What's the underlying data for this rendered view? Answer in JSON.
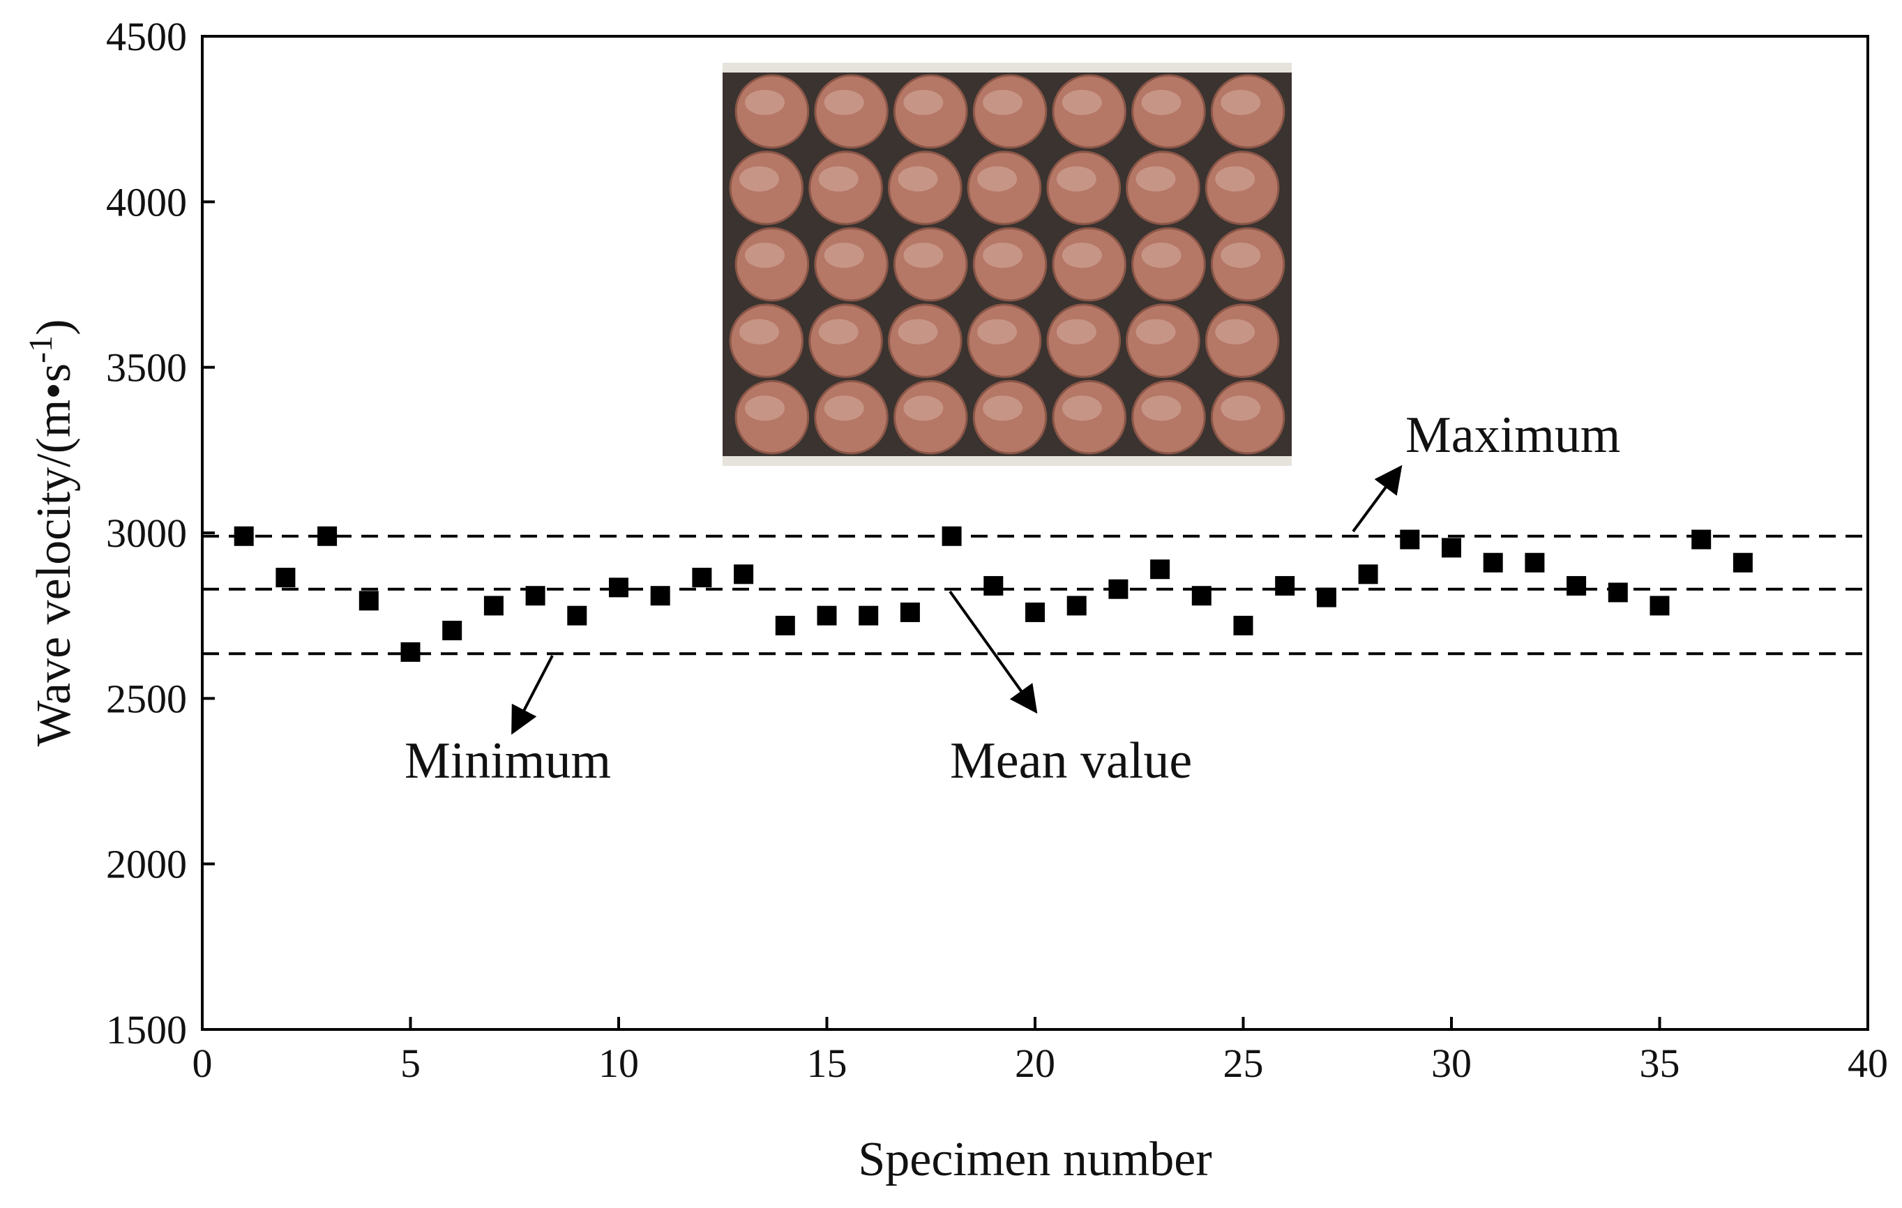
{
  "chart_data": {
    "type": "scatter",
    "title": "",
    "xlabel": "Specimen number",
    "ylabel_main": "Wave velocity/(m•s",
    "ylabel_sup": "-1",
    "ylabel_close": ")",
    "xlim": [
      0,
      40
    ],
    "ylim": [
      1500,
      4500
    ],
    "xticks": [
      0,
      5,
      10,
      15,
      20,
      25,
      30,
      35,
      40
    ],
    "yticks": [
      1500,
      2000,
      2500,
      3000,
      3500,
      4000,
      4500
    ],
    "grid": false,
    "marker": "square",
    "marker_color": "#000000",
    "series": [
      {
        "name": "Wave velocity",
        "x": [
          1,
          2,
          3,
          4,
          5,
          6,
          7,
          8,
          9,
          10,
          11,
          12,
          13,
          14,
          15,
          16,
          17,
          18,
          19,
          20,
          21,
          22,
          23,
          24,
          25,
          26,
          27,
          28,
          29,
          30,
          31,
          32,
          33,
          34,
          35,
          36,
          37
        ],
        "y": [
          2990,
          2865,
          2990,
          2795,
          2640,
          2705,
          2780,
          2810,
          2750,
          2835,
          2810,
          2865,
          2875,
          2720,
          2750,
          2750,
          2760,
          2990,
          2840,
          2760,
          2780,
          2830,
          2890,
          2810,
          2720,
          2840,
          2805,
          2875,
          2980,
          2955,
          2910,
          2910,
          2840,
          2820,
          2780,
          2980,
          2910
        ]
      }
    ],
    "reference_lines": [
      {
        "name": "Maximum",
        "y": 2990,
        "style": "dashed"
      },
      {
        "name": "Mean value",
        "y": 2830,
        "style": "dashed"
      },
      {
        "name": "Minimum",
        "y": 2635,
        "style": "dashed"
      }
    ],
    "annotations": [
      {
        "text": "Maximum",
        "target": "Maximum"
      },
      {
        "text": "Mean value",
        "target": "Mean value"
      },
      {
        "text": "Minimum",
        "target": "Minimum"
      }
    ],
    "inset_photo": {
      "rows": [
        [
          "",
          "",
          "",
          "",
          "",
          "",
          ""
        ],
        [
          "",
          "",
          "",
          "",
          "",
          "",
          ""
        ],
        [
          "",
          "",
          "",
          "",
          "",
          "",
          ""
        ],
        [
          "",
          "",
          "",
          "",
          "",
          "",
          ""
        ],
        [
          "",
          "",
          "",
          "",
          "",
          "",
          ""
        ]
      ],
      "background_color": "#3a3330",
      "specimen_color": "#b57766",
      "frame_color": "#e6e2dc"
    }
  }
}
